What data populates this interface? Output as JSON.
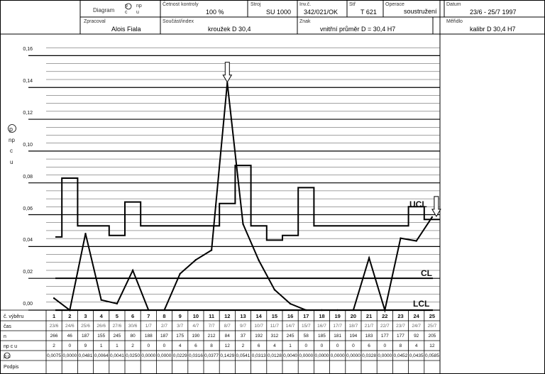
{
  "header": {
    "diagram_label": "Diagram",
    "diagram_options": [
      "p",
      "np",
      "c",
      "u"
    ],
    "frequency_label": "Četnost kontroly",
    "frequency_value": "100 %",
    "machine_label": "Stroj",
    "machine_value": "SU 1000",
    "inv_label": "Inv.č.",
    "inv_value": "342/021/OK",
    "tool_label": "Stř",
    "tool_value": "T 621",
    "operation_label": "Operace",
    "operation_value": "soustružení",
    "date_label": "Datum",
    "date_value": "23/6 - 25/7 1997",
    "processed_label": "Zpracoval",
    "processed_value": "Alois Fiala",
    "part_label": "Součást/index",
    "part_value": "kroužek D 30,4",
    "feature_label": "Znak",
    "feature_value": "vnitřní průměr D = 30,4 H7",
    "gauge_label": "Měřidlo",
    "gauge_value": "kalibr D 30,4 H7"
  },
  "side_labels": [
    "p",
    "np",
    "c",
    "u"
  ],
  "table_labels": {
    "sample_no": "č. výběru",
    "time": "čas",
    "n": "n",
    "counts": "np c u",
    "proportion": "p u",
    "signature": "Podpis"
  },
  "chart_data": {
    "type": "line",
    "x": [
      1,
      2,
      3,
      4,
      5,
      6,
      7,
      8,
      9,
      10,
      11,
      12,
      13,
      14,
      15,
      16,
      17,
      18,
      19,
      20,
      21,
      22,
      23,
      24,
      25
    ],
    "dates": [
      "23/6",
      "24/6",
      "25/6",
      "26/6",
      "27/6",
      "30/6",
      "1/7",
      "2/7",
      "3/7",
      "4/7",
      "7/7",
      "8/7",
      "9/7",
      "10/7",
      "11/7",
      "14/7",
      "15/7",
      "16/7",
      "17/7",
      "18/7",
      "21/7",
      "22/7",
      "23/7",
      "24/7",
      "25/7"
    ],
    "n": [
      266,
      46,
      187,
      155,
      245,
      80,
      188,
      187,
      175,
      190,
      212,
      84,
      37,
      192,
      312,
      245,
      58,
      185,
      181,
      194,
      183,
      177,
      177,
      92,
      205
    ],
    "defects": [
      2,
      0,
      9,
      1,
      1,
      2,
      0,
      0,
      4,
      6,
      8,
      12,
      2,
      6,
      4,
      1,
      0,
      0,
      0,
      0,
      6,
      0,
      8,
      4,
      12
    ],
    "proportion_labels": [
      "0,0075",
      "0,0000",
      "0,0481",
      "0,0064",
      "0,0041",
      "0,0250",
      "0,0000",
      "0,0000",
      "0,0229",
      "0,0316",
      "0,0377",
      "0,1429",
      "0,0541",
      "0,0313",
      "0,0128",
      "0,0040",
      "0,0000",
      "0,0000",
      "0,0000",
      "0,0000",
      "0,0328",
      "0,0000",
      "0,0452",
      "0,0435",
      "0,0585"
    ],
    "p": [
      0.0075,
      0,
      0.0481,
      0.0064,
      0.0041,
      0.025,
      0,
      0,
      0.0229,
      0.0316,
      0.0377,
      0.1429,
      0.0541,
      0.0313,
      0.0128,
      0.004,
      0,
      0,
      0,
      0,
      0.0328,
      0,
      0.0452,
      0.0435,
      0.0585
    ],
    "ucl": [
      0.046,
      0.083,
      0.053,
      0.053,
      0.047,
      0.068,
      0.053,
      0.053,
      0.053,
      0.053,
      0.053,
      0.067,
      0.091,
      0.053,
      0.044,
      0.047,
      0.077,
      0.053,
      0.053,
      0.053,
      0.053,
      0.053,
      0.053,
      0.065,
      0.057
    ],
    "cl": 0.02,
    "lcl": 0,
    "ylim": [
      0,
      0.17
    ],
    "yticks": [
      "0,00",
      "0,02",
      "0,04",
      "0,06",
      "0,08",
      "0,10",
      "0,12",
      "0,14",
      "0,16"
    ],
    "control_labels": {
      "ucl": "UCL",
      "cl": "CL",
      "lcl": "LCL"
    }
  }
}
